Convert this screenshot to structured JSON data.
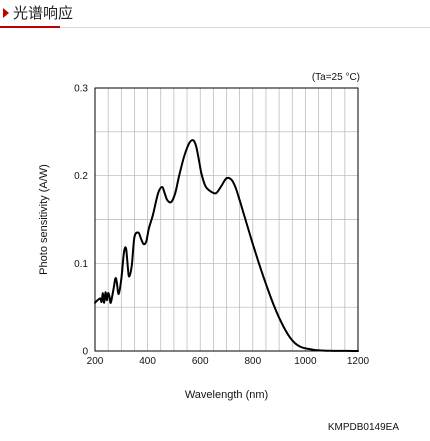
{
  "header": {
    "title": "光谱响应"
  },
  "chart_data": {
    "type": "line",
    "title": "",
    "condition_note": "(Ta=25 °C)",
    "xlabel": "Wavelength (nm)",
    "ylabel": "Photo sensitivity (A/W)",
    "xlim": [
      200,
      1200
    ],
    "ylim": [
      0,
      0.3
    ],
    "x_ticks": [
      "200",
      "400",
      "600",
      "800",
      "1000",
      "1200"
    ],
    "y_ticks": [
      "0",
      "0.1",
      "0.2",
      "0.3"
    ],
    "grid": true,
    "series": [
      {
        "x": [
          200,
          210,
          220,
          225,
          230,
          235,
          240,
          245,
          250,
          255,
          260,
          270,
          278,
          283,
          290,
          300,
          310,
          318,
          325,
          330,
          340,
          350,
          365,
          375,
          385,
          395,
          405,
          420,
          440,
          455,
          465,
          475,
          490,
          505,
          520,
          540,
          560,
          575,
          585,
          595,
          605,
          620,
          640,
          660,
          680,
          700,
          720,
          735,
          750,
          765,
          780,
          800,
          820,
          840,
          860,
          880,
          900,
          920,
          940,
          960,
          980,
          1000,
          1020,
          1040,
          1060,
          1080,
          1100,
          1130,
          1160,
          1200
        ],
        "y": [
          0.055,
          0.058,
          0.06,
          0.056,
          0.066,
          0.055,
          0.067,
          0.058,
          0.066,
          0.062,
          0.055,
          0.07,
          0.083,
          0.078,
          0.065,
          0.082,
          0.112,
          0.117,
          0.095,
          0.085,
          0.098,
          0.13,
          0.135,
          0.128,
          0.122,
          0.125,
          0.14,
          0.155,
          0.18,
          0.187,
          0.18,
          0.172,
          0.17,
          0.18,
          0.2,
          0.223,
          0.238,
          0.24,
          0.233,
          0.218,
          0.202,
          0.188,
          0.182,
          0.18,
          0.188,
          0.197,
          0.195,
          0.186,
          0.172,
          0.157,
          0.142,
          0.122,
          0.103,
          0.085,
          0.068,
          0.052,
          0.038,
          0.026,
          0.016,
          0.009,
          0.005,
          0.003,
          0.002,
          0.001,
          0.0006,
          0.0003,
          0.0002,
          0.0001,
          0.0001,
          0.0
        ]
      }
    ],
    "code": "KMPDB0149EA"
  }
}
